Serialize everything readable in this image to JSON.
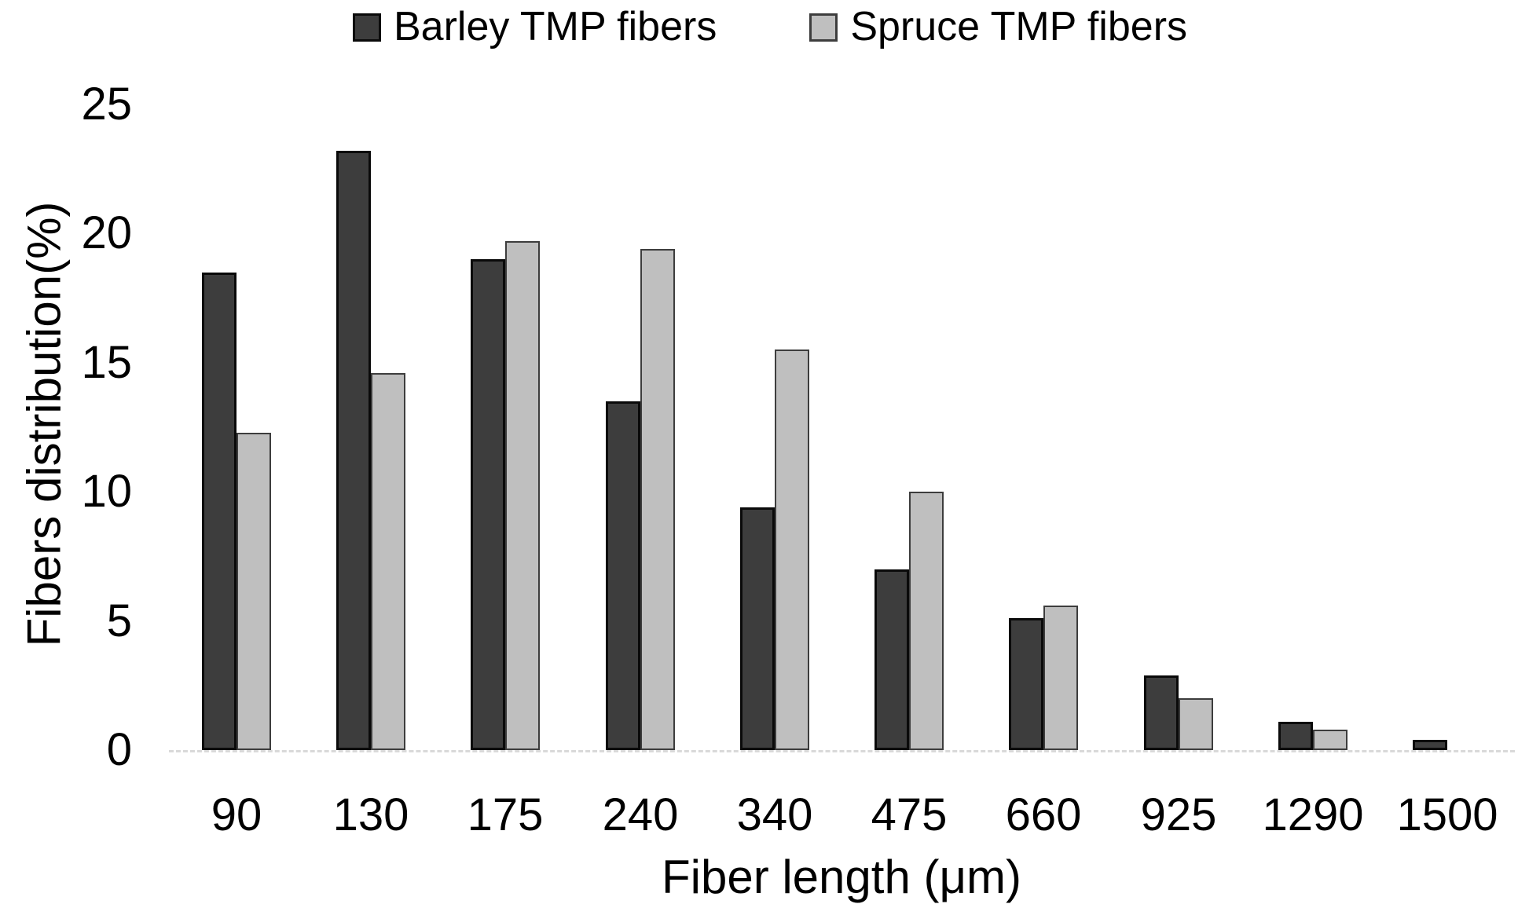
{
  "chart_data": {
    "type": "bar",
    "title": "",
    "categories": [
      "90",
      "130",
      "175",
      "240",
      "340",
      "475",
      "660",
      "925",
      "1290",
      "1500"
    ],
    "series": [
      {
        "name": "Barley TMP fibers",
        "slug": "barley",
        "color": "#3d3d3d",
        "border_color": "#0a0a0a",
        "values": [
          18.5,
          23.2,
          19.0,
          13.5,
          9.4,
          7.0,
          5.1,
          2.9,
          1.1,
          0.4
        ]
      },
      {
        "name": "Spruce TMP fibers",
        "slug": "spruce",
        "color": "#bfbfbf",
        "border_color": "#3d3d3d",
        "values": [
          12.3,
          14.6,
          19.7,
          19.4,
          15.5,
          10.0,
          5.6,
          2.0,
          0.8,
          0
        ]
      }
    ],
    "xlabel": "Fiber length (μm)",
    "ylabel": "Fibers distribution(%)",
    "ylim": [
      0,
      25
    ],
    "yticks": [
      0,
      5,
      10,
      15,
      20,
      25
    ],
    "grid": false,
    "legend_position": "top",
    "axis_line_color": "#d9d9d9",
    "text_color": "#000000",
    "background_color": "#ffffff"
  }
}
